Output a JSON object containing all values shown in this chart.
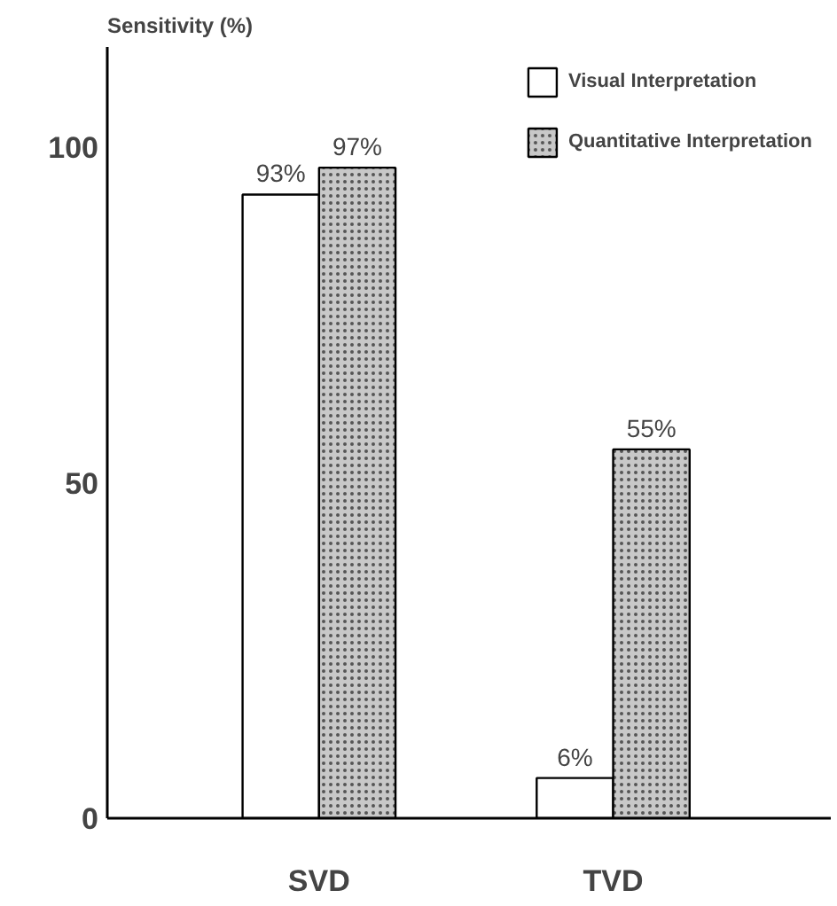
{
  "chart_data": {
    "type": "bar",
    "ylabel": "Sensitivity (%)",
    "categories": [
      "SVD",
      "TVD"
    ],
    "series": [
      {
        "name": "Visual Interpretation",
        "color": "#ffffff",
        "values": [
          93,
          6
        ],
        "value_labels": [
          "93%",
          "6%"
        ]
      },
      {
        "name": "Quantitative Interpretation",
        "color": "#c8c8c8",
        "values": [
          97,
          55
        ],
        "value_labels": [
          "97%",
          "55%"
        ]
      }
    ],
    "ylim": [
      0,
      115
    ],
    "yticks": [
      0,
      50,
      100
    ],
    "grid": false,
    "legend": "top right"
  }
}
